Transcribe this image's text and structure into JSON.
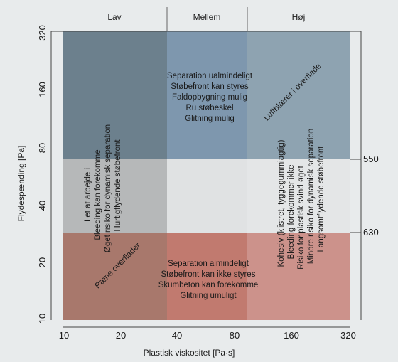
{
  "chart_data": {
    "type": "region-diagram",
    "xlabel": "Plastisk viskositet [Pa·s]",
    "ylabel": "Flydespænding [Pa]",
    "x_scale": "log",
    "y_scale": "log",
    "x_ticks": [
      "10",
      "20",
      "40",
      "80",
      "160",
      "320"
    ],
    "y_ticks": [
      "320",
      "160",
      "80",
      "40",
      "20",
      "10"
    ],
    "right_ticks": [
      "550",
      "630"
    ],
    "column_headers": [
      "Lav",
      "Mellem",
      "Høj"
    ],
    "colors": {
      "top_left": "#6c808d",
      "top_mid": "#7e97ae",
      "top_right": "#8ea3b1",
      "mid_left": "#b6b8b9",
      "mid_mid": "#e0e2e3",
      "mid_right": "#e4e6e7",
      "bot_left": "#a8786c",
      "bot_mid": "#c17a6f",
      "bot_right": "#cc928b"
    },
    "texts": {
      "top_center": [
        "Separation ualmindeligt",
        "Støbefront kan styres",
        "Faldopbygning mulig",
        "Ru støbeskel",
        "Glitning mulig"
      ],
      "top_right": "Luftblærer i overflade",
      "left_mid": [
        "Let at arbejde i",
        "Bleeding kan forekomme",
        "Øget risiko for dynamisk separation",
        "Hurtigflydende støbefront"
      ],
      "left_bottom": "Pæne overflader",
      "bottom_center": [
        "Separation almindeligt",
        "Støbefront kan ikke styres",
        "Skumbeton kan forekomme",
        "Glitning umuligt"
      ],
      "right_mid": [
        "Kohesiv (klistret, tyggegummiagtig)",
        "Bleeding forekommer ikke",
        "Risiko for plastisk svind øget",
        "Mindre risiko for dynamisk separation",
        "Langsomtflydende støbefront"
      ]
    }
  }
}
